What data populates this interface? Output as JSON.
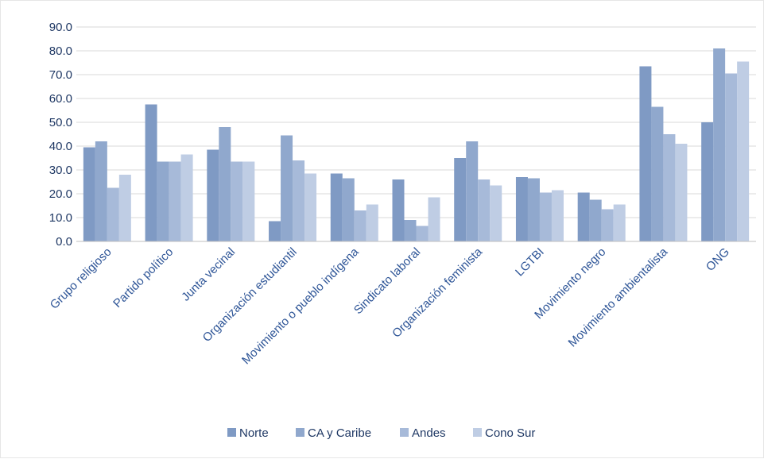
{
  "chart_data": {
    "type": "bar",
    "title": "",
    "xlabel": "",
    "ylabel": "",
    "ylim": [
      0,
      90
    ],
    "yticks": [
      "0.0",
      "10.0",
      "20.0",
      "30.0",
      "40.0",
      "50.0",
      "60.0",
      "70.0",
      "80.0",
      "90.0"
    ],
    "grid": true,
    "legend_position": "bottom",
    "categories": [
      "Grupo religioso",
      "Partido político",
      "Junta vecinal",
      "Organización estudiantil",
      "Movimiento o pueblo indígena",
      "Sindicato laboral",
      "Organización feminista",
      "LGTBI",
      "Movimiento negro",
      "Movimiento ambientalista",
      "ONG"
    ],
    "series": [
      {
        "name": "Norte",
        "color": "#7f9ac4",
        "values": [
          39.5,
          57.5,
          38.5,
          8.5,
          28.5,
          26.0,
          35.0,
          27.0,
          20.5,
          73.5,
          50.0
        ]
      },
      {
        "name": "CA y Caribe",
        "color": "#90a8cd",
        "values": [
          42.0,
          33.5,
          48.0,
          44.5,
          26.5,
          9.0,
          42.0,
          26.5,
          17.5,
          56.5,
          81.0
        ]
      },
      {
        "name": "Andes",
        "color": "#a7bad9",
        "values": [
          22.5,
          33.5,
          33.5,
          34.0,
          13.0,
          6.5,
          26.0,
          20.5,
          13.5,
          45.0,
          70.5
        ]
      },
      {
        "name": "Cono Sur",
        "color": "#bfcde4",
        "values": [
          28.0,
          36.5,
          33.5,
          28.5,
          15.5,
          18.5,
          23.5,
          21.5,
          15.5,
          41.0,
          75.5
        ]
      }
    ]
  }
}
